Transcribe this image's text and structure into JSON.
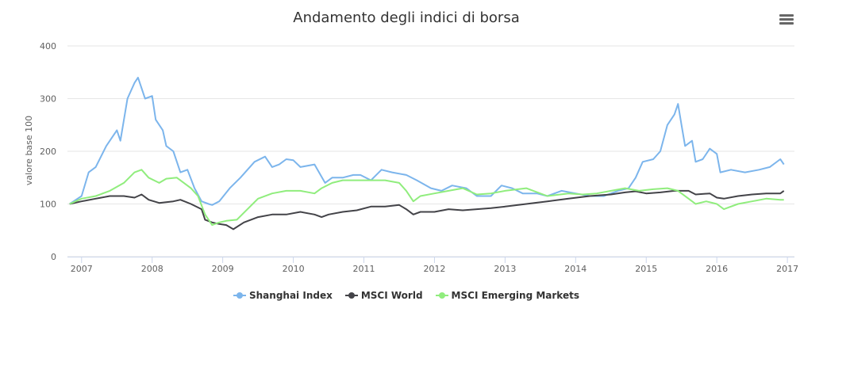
{
  "header": {
    "title": "Andamento degli indici di borsa",
    "menu_icon": "hamburger-menu-icon"
  },
  "legend": [
    {
      "name": "Shanghai Index",
      "color": "#7cb5ec"
    },
    {
      "name": "MSCI World",
      "color": "#434348"
    },
    {
      "name": "MSCI Emerging Markets",
      "color": "#90ed7d"
    }
  ],
  "chart_data": {
    "type": "line",
    "title": "Andamento degli indici di borsa",
    "xlabel": "",
    "ylabel": "valore base 100",
    "xlim": [
      2006.8,
      2017.1
    ],
    "ylim": [
      0,
      400
    ],
    "yticks": [
      0,
      100,
      200,
      300,
      400
    ],
    "xticks": [
      "2007",
      "2008",
      "2009",
      "2010",
      "2011",
      "2012",
      "2013",
      "2014",
      "2015",
      "2016",
      "2017"
    ],
    "grid": true,
    "legend_position": "bottom",
    "series": [
      {
        "name": "Shanghai Index",
        "color": "#7cb5ec",
        "x": [
          2006.83,
          2007.0,
          2007.1,
          2007.2,
          2007.35,
          2007.5,
          2007.55,
          2007.65,
          2007.75,
          2007.8,
          2007.9,
          2008.0,
          2008.05,
          2008.15,
          2008.2,
          2008.3,
          2008.4,
          2008.5,
          2008.6,
          2008.7,
          2008.8,
          2008.85,
          2008.95,
          2009.1,
          2009.25,
          2009.45,
          2009.6,
          2009.7,
          2009.8,
          2009.9,
          2010.0,
          2010.1,
          2010.3,
          2010.45,
          2010.55,
          2010.7,
          2010.85,
          2010.95,
          2011.1,
          2011.25,
          2011.4,
          2011.6,
          2011.75,
          2011.95,
          2012.1,
          2012.25,
          2012.45,
          2012.6,
          2012.8,
          2012.95,
          2013.1,
          2013.25,
          2013.45,
          2013.6,
          2013.8,
          2014.0,
          2014.2,
          2014.4,
          2014.6,
          2014.75,
          2014.85,
          2014.95,
          2015.1,
          2015.2,
          2015.3,
          2015.4,
          2015.45,
          2015.5,
          2015.55,
          2015.65,
          2015.7,
          2015.8,
          2015.9,
          2016.0,
          2016.05,
          2016.2,
          2016.4,
          2016.6,
          2016.75,
          2016.9,
          2016.95
        ],
        "values": [
          100,
          115,
          160,
          170,
          210,
          240,
          220,
          300,
          330,
          340,
          300,
          305,
          260,
          240,
          210,
          200,
          160,
          165,
          130,
          105,
          100,
          98,
          105,
          130,
          150,
          180,
          190,
          170,
          175,
          185,
          183,
          170,
          175,
          140,
          150,
          150,
          155,
          155,
          145,
          165,
          160,
          155,
          145,
          130,
          125,
          135,
          130,
          115,
          115,
          135,
          130,
          120,
          120,
          115,
          125,
          120,
          115,
          115,
          125,
          130,
          150,
          180,
          185,
          200,
          250,
          270,
          290,
          250,
          210,
          220,
          180,
          185,
          205,
          195,
          160,
          165,
          160,
          165,
          170,
          185,
          175
        ]
      },
      {
        "name": "MSCI World",
        "color": "#434348",
        "x": [
          2006.83,
          2007.0,
          2007.2,
          2007.4,
          2007.6,
          2007.75,
          2007.85,
          2007.95,
          2008.1,
          2008.3,
          2008.4,
          2008.55,
          2008.7,
          2008.75,
          2008.85,
          2008.95,
          2009.05,
          2009.15,
          2009.3,
          2009.5,
          2009.7,
          2009.9,
          2010.1,
          2010.3,
          2010.4,
          2010.5,
          2010.7,
          2010.9,
          2011.1,
          2011.3,
          2011.5,
          2011.6,
          2011.7,
          2011.8,
          2012.0,
          2012.2,
          2012.4,
          2012.6,
          2012.8,
          2013.0,
          2013.3,
          2013.6,
          2013.9,
          2014.2,
          2014.5,
          2014.7,
          2014.85,
          2015.0,
          2015.2,
          2015.4,
          2015.6,
          2015.7,
          2015.9,
          2016.0,
          2016.1,
          2016.3,
          2016.5,
          2016.7,
          2016.9,
          2016.95
        ],
        "values": [
          100,
          105,
          110,
          115,
          115,
          112,
          118,
          108,
          102,
          105,
          108,
          100,
          90,
          70,
          65,
          62,
          60,
          52,
          65,
          75,
          80,
          80,
          85,
          80,
          75,
          80,
          85,
          88,
          95,
          95,
          98,
          90,
          80,
          85,
          85,
          90,
          88,
          90,
          92,
          95,
          100,
          105,
          110,
          115,
          118,
          122,
          124,
          120,
          122,
          125,
          125,
          118,
          120,
          112,
          110,
          115,
          118,
          120,
          120,
          125
        ]
      },
      {
        "name": "MSCI Emerging Markets",
        "color": "#90ed7d",
        "x": [
          2006.83,
          2007.0,
          2007.2,
          2007.4,
          2007.6,
          2007.75,
          2007.85,
          2007.95,
          2008.1,
          2008.2,
          2008.35,
          2008.45,
          2008.55,
          2008.65,
          2008.75,
          2008.85,
          2008.95,
          2009.05,
          2009.2,
          2009.35,
          2009.5,
          2009.7,
          2009.9,
          2010.1,
          2010.3,
          2010.4,
          2010.55,
          2010.7,
          2010.9,
          2011.1,
          2011.3,
          2011.5,
          2011.6,
          2011.7,
          2011.8,
          2012.0,
          2012.2,
          2012.4,
          2012.6,
          2012.8,
          2013.0,
          2013.3,
          2013.4,
          2013.6,
          2013.9,
          2014.1,
          2014.3,
          2014.5,
          2014.7,
          2014.9,
          2015.1,
          2015.3,
          2015.45,
          2015.6,
          2015.7,
          2015.85,
          2016.0,
          2016.1,
          2016.3,
          2016.5,
          2016.7,
          2016.9,
          2016.95
        ],
        "values": [
          100,
          110,
          115,
          125,
          140,
          160,
          165,
          150,
          140,
          148,
          150,
          140,
          130,
          115,
          80,
          60,
          65,
          68,
          70,
          90,
          110,
          120,
          125,
          125,
          120,
          130,
          140,
          145,
          145,
          145,
          145,
          140,
          125,
          105,
          115,
          120,
          125,
          130,
          118,
          120,
          125,
          130,
          125,
          115,
          120,
          118,
          120,
          125,
          130,
          125,
          128,
          130,
          125,
          110,
          100,
          105,
          100,
          90,
          100,
          105,
          110,
          108,
          108
        ]
      }
    ]
  }
}
